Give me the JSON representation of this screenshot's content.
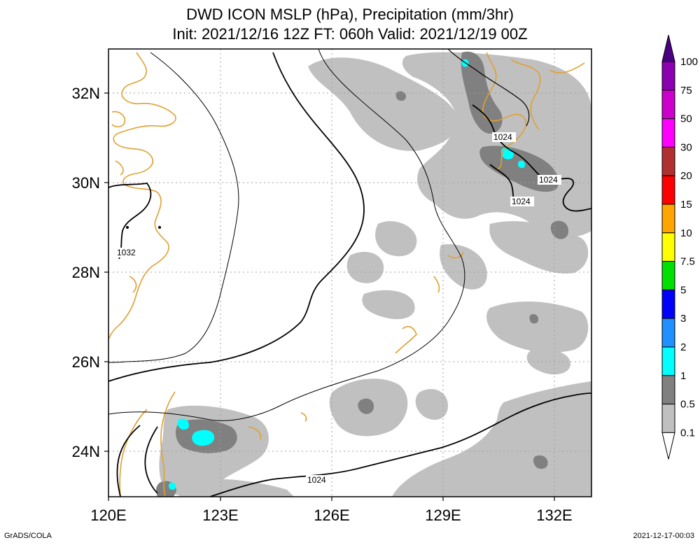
{
  "header": {
    "title_line1": "DWD ICON MSLP (hPa), Precipitation (mm/3hr)",
    "title_line2": "Init: 2021/12/16 12Z  FT: 060h  Valid: 2021/12/19 00Z"
  },
  "map": {
    "lon_labels": [
      "120E",
      "123E",
      "126E",
      "129E",
      "132E"
    ],
    "lat_labels": [
      "32N",
      "30N",
      "28N",
      "26N",
      "24N"
    ],
    "isobar_labels": [
      "1032",
      "1024",
      "1024",
      "1024",
      "1024"
    ],
    "colors": {
      "coastline": "#e0a030",
      "light_precip": "#c0c0c0",
      "mid_precip": "#808080",
      "cyan_precip": "#00ffff",
      "isobar": "#000000",
      "grid": "#a0a0a0"
    }
  },
  "colorbar": {
    "labels": [
      "100",
      "75",
      "50",
      "30",
      "20",
      "15",
      "10",
      "7.5",
      "5",
      "3",
      "2",
      "1",
      "0.5",
      "0.1"
    ],
    "colors": [
      "#4b0082",
      "#8b00b0",
      "#cc00cc",
      "#ff00ff",
      "#b03030",
      "#ff0000",
      "#ffa500",
      "#ffff00",
      "#00e000",
      "#0000ff",
      "#1e90ff",
      "#00ffff",
      "#808080",
      "#c0c0c0"
    ]
  },
  "footer": {
    "left": "GrADS/COLA",
    "right": "2021-12-17-00:03"
  }
}
